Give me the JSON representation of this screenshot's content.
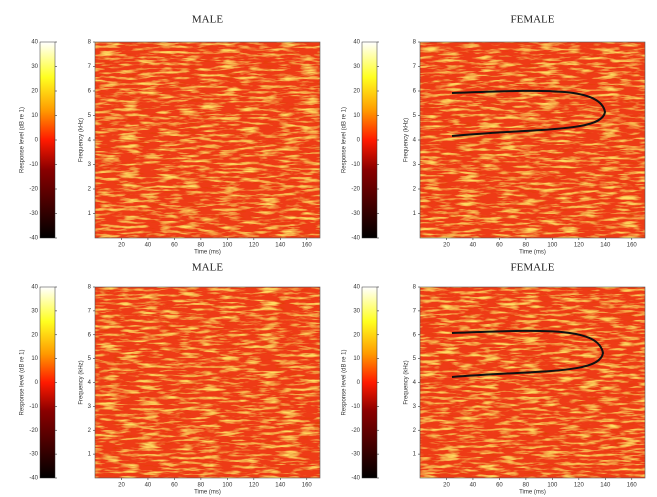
{
  "chart_data": [
    {
      "type": "heatmap",
      "title": "MALE",
      "xlabel": "Time (ms)",
      "ylabel": "Frequency (kHz)",
      "xlim": [
        0,
        170
      ],
      "xticks": [
        20,
        40,
        60,
        80,
        100,
        120,
        140,
        160
      ],
      "ylim": [
        0,
        8
      ],
      "yticks": [
        1,
        2,
        3,
        4,
        5,
        6,
        7,
        8
      ],
      "colorbar": {
        "label": "Response level (dB re 1)",
        "lim": [
          -40,
          40
        ],
        "ticks": [
          -40,
          -30,
          -20,
          -10,
          0,
          10,
          20,
          30,
          40
        ]
      }
    },
    {
      "type": "heatmap",
      "title": "FEMALE",
      "xlabel": "Time (ms)",
      "ylabel": "Frequency (kHz)",
      "xlim": [
        0,
        170
      ],
      "xticks": [
        20,
        40,
        60,
        80,
        100,
        120,
        140,
        160
      ],
      "ylim": [
        0,
        8
      ],
      "yticks": [
        1,
        2,
        3,
        4,
        5,
        6,
        7,
        8
      ],
      "colorbar": {
        "label": "Response level (dB re 1)",
        "lim": [
          -40,
          40
        ],
        "ticks": [
          -40,
          -30,
          -20,
          -10,
          0,
          10,
          20,
          30,
          40
        ]
      }
    },
    {
      "type": "heatmap",
      "title": "MALE",
      "xlabel": "Time (ms)",
      "ylabel": "Frequency (kHz)",
      "xlim": [
        0,
        170
      ],
      "xticks": [
        20,
        40,
        60,
        80,
        100,
        120,
        140,
        160
      ],
      "ylim": [
        0,
        8
      ],
      "yticks": [
        1,
        2,
        3,
        4,
        5,
        6,
        7,
        8
      ],
      "colorbar": {
        "label": "Response level (dB re 1)",
        "lim": [
          -40,
          40
        ],
        "ticks": [
          -40,
          -30,
          -20,
          -10,
          0,
          10,
          20,
          30,
          40
        ]
      }
    },
    {
      "type": "heatmap",
      "title": "FEMALE",
      "xlabel": "Time (ms)",
      "ylabel": "Frequency (kHz)",
      "xlim": [
        0,
        170
      ],
      "xticks": [
        20,
        40,
        60,
        80,
        100,
        120,
        140,
        160
      ],
      "ylim": [
        0,
        8
      ],
      "yticks": [
        1,
        2,
        3,
        4,
        5,
        6,
        7,
        8
      ],
      "colorbar": {
        "label": "Response level (dB re 1)",
        "lim": [
          -40,
          40
        ],
        "ticks": [
          -40,
          -30,
          -20,
          -10,
          0,
          10,
          20,
          30,
          40
        ]
      }
    }
  ]
}
